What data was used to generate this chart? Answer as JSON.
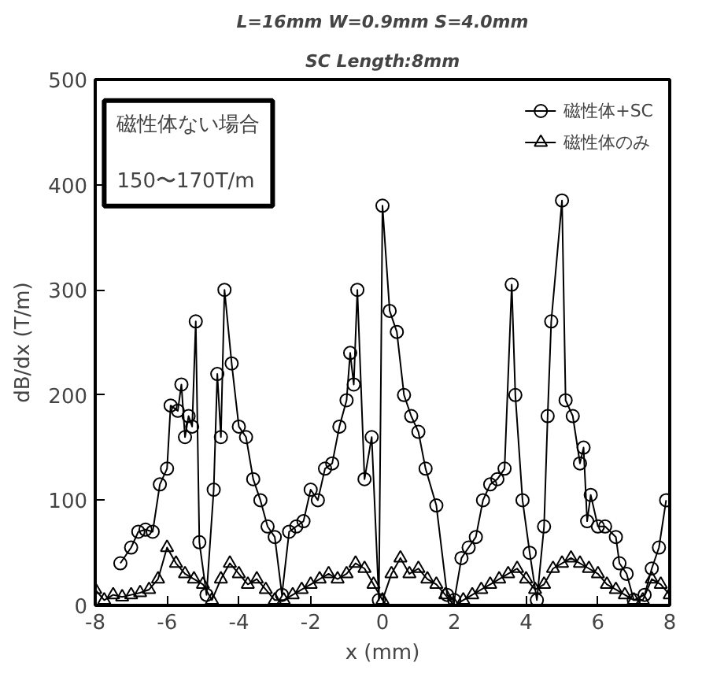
{
  "chart_data": {
    "type": "line",
    "title": "L=16mm W=0.9mm S=4.0mm",
    "subtitle": "SC Length:8mm",
    "xlabel": "x (mm)",
    "ylabel": "dB/dx (T/m)",
    "xlim": [
      -8,
      8
    ],
    "xticks": [
      -8,
      -6,
      -4,
      -2,
      0,
      2,
      4,
      6,
      8
    ],
    "ylim": [
      0,
      500
    ],
    "yticks": [
      0,
      100,
      200,
      300,
      400,
      500
    ],
    "grid": false,
    "legend": "top right",
    "line_style": "solid",
    "annotations": [
      "磁性体ない場合",
      "150〜170T/m"
    ],
    "series": [
      {
        "name": "磁性体+SC",
        "color": "#000000",
        "marker": "circle",
        "x": [
          -7.3,
          -7.0,
          -6.8,
          -6.6,
          -6.4,
          -6.2,
          -6.0,
          -5.9,
          -5.7,
          -5.6,
          -5.5,
          -5.4,
          -5.3,
          -5.2,
          -5.1,
          -4.9,
          -4.7,
          -4.6,
          -4.5,
          -4.4,
          -4.2,
          -4.0,
          -3.8,
          -3.6,
          -3.4,
          -3.2,
          -3.0,
          -2.8,
          -2.6,
          -2.4,
          -2.2,
          -2.0,
          -1.8,
          -1.6,
          -1.4,
          -1.2,
          -1.0,
          -0.9,
          -0.8,
          -0.7,
          -0.5,
          -0.3,
          -0.1,
          0.0,
          0.2,
          0.4,
          0.6,
          0.8,
          1.0,
          1.2,
          1.5,
          1.8,
          2.0,
          2.2,
          2.4,
          2.6,
          2.8,
          3.0,
          3.2,
          3.4,
          3.6,
          3.7,
          3.9,
          4.1,
          4.3,
          4.5,
          4.6,
          4.7,
          5.0,
          5.1,
          5.3,
          5.5,
          5.6,
          5.7,
          5.8,
          6.0,
          6.2,
          6.5,
          6.6,
          6.8,
          7.0,
          7.3,
          7.5,
          7.7,
          7.9
        ],
        "values": [
          40,
          55,
          70,
          72,
          70,
          115,
          130,
          190,
          185,
          210,
          160,
          180,
          170,
          270,
          60,
          10,
          110,
          220,
          160,
          300,
          230,
          170,
          160,
          120,
          100,
          75,
          65,
          10,
          70,
          75,
          80,
          110,
          100,
          130,
          135,
          170,
          195,
          240,
          210,
          300,
          120,
          160,
          5,
          380,
          280,
          260,
          200,
          180,
          165,
          130,
          95,
          10,
          5,
          45,
          55,
          65,
          100,
          115,
          120,
          130,
          305,
          200,
          100,
          50,
          5,
          75,
          180,
          270,
          385,
          195,
          180,
          135,
          150,
          80,
          105,
          75,
          75,
          65,
          40,
          30,
          5,
          10,
          35,
          55,
          100
        ]
      },
      {
        "name": "磁性体のみ",
        "color": "#000000",
        "marker": "triangle",
        "x": [
          -8.0,
          -7.75,
          -7.5,
          -7.25,
          -7.0,
          -6.75,
          -6.5,
          -6.25,
          -6.0,
          -5.75,
          -5.5,
          -5.25,
          -5.0,
          -4.75,
          -4.5,
          -4.25,
          -4.0,
          -3.75,
          -3.5,
          -3.25,
          -3.0,
          -2.75,
          -2.5,
          -2.25,
          -2.0,
          -1.75,
          -1.5,
          -1.25,
          -1.0,
          -0.75,
          -0.5,
          -0.25,
          0.0,
          0.25,
          0.5,
          0.75,
          1.0,
          1.25,
          1.5,
          1.75,
          2.0,
          2.25,
          2.5,
          2.75,
          3.0,
          3.25,
          3.5,
          3.75,
          4.0,
          4.25,
          4.5,
          4.75,
          5.0,
          5.25,
          5.5,
          5.75,
          6.0,
          6.25,
          6.5,
          6.75,
          7.0,
          7.25,
          7.5,
          7.75,
          8.0
        ],
        "values": [
          15,
          5,
          10,
          8,
          10,
          12,
          15,
          25,
          55,
          40,
          30,
          25,
          20,
          5,
          25,
          40,
          30,
          20,
          25,
          15,
          5,
          5,
          10,
          15,
          20,
          25,
          30,
          25,
          30,
          40,
          35,
          20,
          5,
          30,
          45,
          30,
          35,
          25,
          20,
          10,
          0,
          5,
          10,
          15,
          20,
          25,
          30,
          35,
          25,
          15,
          20,
          35,
          40,
          45,
          40,
          35,
          30,
          20,
          15,
          10,
          5,
          5,
          25,
          20,
          10
        ]
      }
    ]
  }
}
